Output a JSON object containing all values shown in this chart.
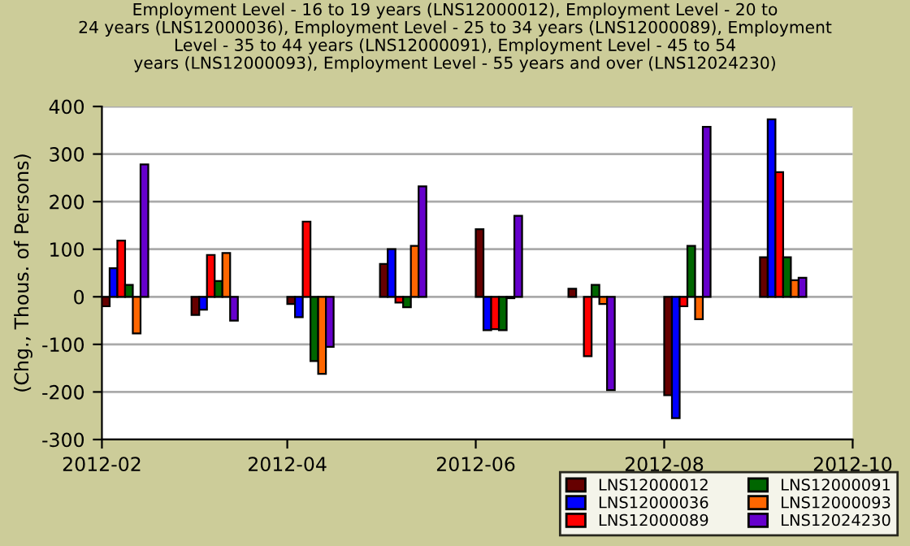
{
  "chart_data": {
    "type": "bar",
    "title": "Employment Level - 16 to 19 years (LNS12000012), Employment Level - 20 to\n24 years (LNS12000036), Employment Level - 25 to 34 years (LNS12000089), Employment\nLevel - 35 to 44 years (LNS12000091), Employment Level - 45 to 54\nyears (LNS12000093), Employment Level - 55 years and over (LNS12024230)",
    "ylabel": "(Chg., Thous. of Persons)",
    "x": [
      "2012-02",
      "2012-03",
      "2012-04",
      "2012-05",
      "2012-06",
      "2012-07",
      "2012-08",
      "2012-09"
    ],
    "series": [
      {
        "name": "LNS12000012",
        "color": "#660000",
        "values": [
          -20,
          -38,
          -15,
          69,
          142,
          17,
          -207,
          83
        ]
      },
      {
        "name": "LNS12000036",
        "color": "#0000ff",
        "values": [
          60,
          -27,
          -43,
          100,
          -70,
          null,
          -255,
          373
        ]
      },
      {
        "name": "LNS12000089",
        "color": "#ff0000",
        "values": [
          118,
          88,
          158,
          -12,
          -68,
          -125,
          -20,
          262
        ]
      },
      {
        "name": "LNS12000091",
        "color": "#006600",
        "values": [
          25,
          33,
          -135,
          -22,
          -70,
          25,
          107,
          83
        ]
      },
      {
        "name": "LNS12000093",
        "color": "#ff6600",
        "values": [
          -77,
          92,
          -162,
          107,
          -3,
          -15,
          -47,
          35
        ]
      },
      {
        "name": "LNS12024230",
        "color": "#6600cc",
        "values": [
          278,
          -50,
          -105,
          232,
          170,
          -196,
          357,
          40
        ]
      }
    ],
    "xlim": [
      "2012-02",
      "2012-10"
    ],
    "xticks": [
      {
        "value": "2012-02",
        "label": "2012-02"
      },
      {
        "value": "2012-04",
        "label": "2012-04"
      },
      {
        "value": "2012-06",
        "label": "2012-06"
      },
      {
        "value": "2012-08",
        "label": "2012-08"
      },
      {
        "value": "2012-10",
        "label": "2012-10"
      }
    ],
    "ylim": [
      -300,
      400
    ],
    "yticks": [
      -300,
      -200,
      -100,
      0,
      100,
      200,
      300,
      400
    ],
    "grid": "y",
    "legend": "bottom right"
  }
}
